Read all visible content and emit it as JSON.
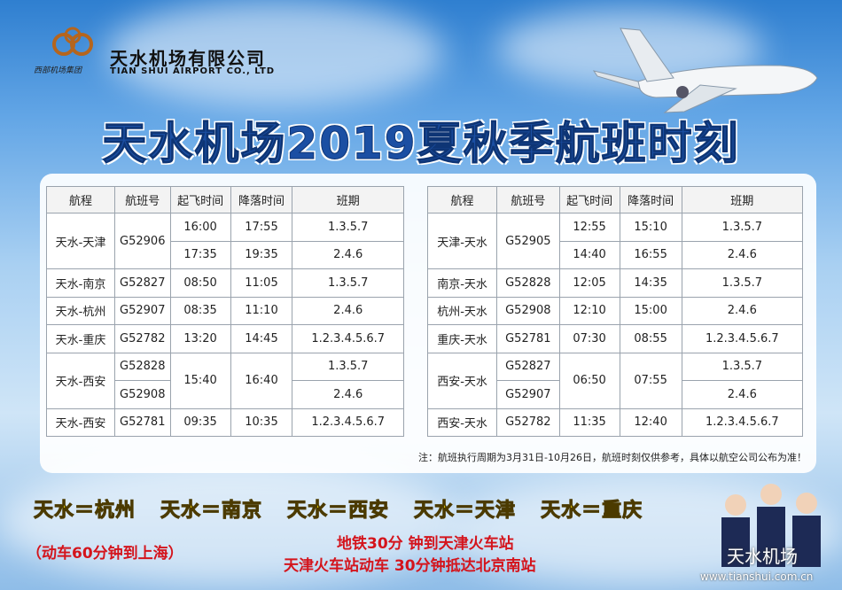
{
  "header": {
    "group": "西部机场集团",
    "company_cn": "天水机场有限公司",
    "company_en": "TIAN SHUI AIRPORT CO., LTD"
  },
  "title": "天水机场2019夏秋季航班时刻",
  "tables": [
    {
      "columns": [
        "航程",
        "航班号",
        "起飞时间",
        "降落时间",
        "班期"
      ],
      "rows": [
        [
          "天水-天津",
          "G52906",
          "16:00",
          "17:55",
          "1.3.5.7"
        ],
        [
          "17:35",
          "19:35",
          "2.4.6"
        ],
        [
          "天水-南京",
          "G52827",
          "08:50",
          "11:05",
          "1.3.5.7"
        ],
        [
          "天水-杭州",
          "G52907",
          "08:35",
          "11:10",
          "2.4.6"
        ],
        [
          "天水-重庆",
          "G52782",
          "13:20",
          "14:45",
          "1.2.3.4.5.6.7"
        ],
        [
          "天水-西安",
          "G52828",
          "15:40",
          "16:40",
          "1.3.5.7"
        ],
        [
          "G52908",
          "2.4.6"
        ],
        [
          "天水-西安",
          "G52781",
          "09:35",
          "10:35",
          "1.2.3.4.5.6.7"
        ]
      ]
    },
    {
      "columns": [
        "航程",
        "航班号",
        "起飞时间",
        "降落时间",
        "班期"
      ],
      "rows": [
        [
          "天津-天水",
          "G52905",
          "12:55",
          "15:10",
          "1.3.5.7"
        ],
        [
          "14:40",
          "16:55",
          "2.4.6"
        ],
        [
          "南京-天水",
          "G52828",
          "12:05",
          "14:35",
          "1.3.5.7"
        ],
        [
          "杭州-天水",
          "G52908",
          "12:10",
          "15:00",
          "2.4.6"
        ],
        [
          "重庆-天水",
          "G52781",
          "07:30",
          "08:55",
          "1.2.3.4.5.6.7"
        ],
        [
          "西安-天水",
          "G52827",
          "06:50",
          "07:55",
          "1.3.5.7"
        ],
        [
          "G52907",
          "2.4.6"
        ],
        [
          "西安-天水",
          "G52782",
          "11:35",
          "12:40",
          "1.2.3.4.5.6.7"
        ]
      ]
    }
  ],
  "note": "注：航班执行周期为3月31日-10月26日，航班时刻仅供参考，具体以航空公司公布为准！",
  "routes": [
    "天水＝杭州",
    "天水＝南京",
    "天水＝西安",
    "天水＝天津",
    "天水＝重庆"
  ],
  "promotions": [
    "（动车60分钟到上海）",
    "地铁30分 钟到天津火车站",
    "天津火车站动车 30分钟抵达北京南站"
  ],
  "watermark": {
    "name": "天水机场",
    "url": "www.tianshui.com.cn"
  }
}
